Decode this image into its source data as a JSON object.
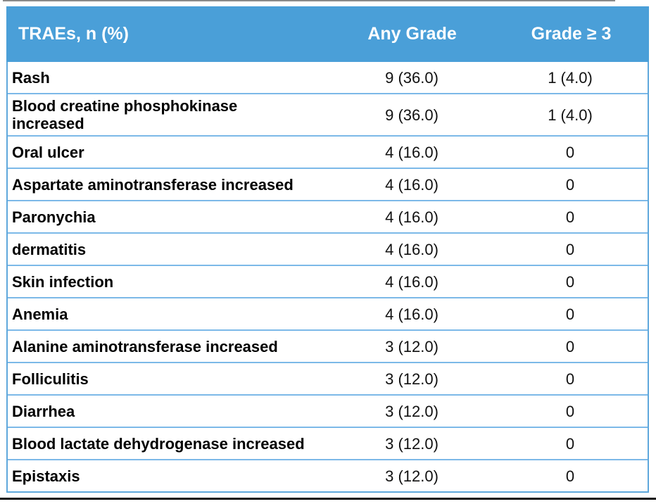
{
  "table": {
    "header": {
      "traes": "TRAEs, n (%)",
      "any_grade": "Any Grade",
      "grade_ge_3": "Grade ≥ 3"
    },
    "rows": [
      {
        "name": "Rash",
        "any_grade": "9 (36.0)",
        "grade_ge_3": "1 (4.0)"
      },
      {
        "name": "Blood creatine phosphokinase increased",
        "any_grade": "9 (36.0)",
        "grade_ge_3": "1 (4.0)"
      },
      {
        "name": "Oral ulcer",
        "any_grade": "4 (16.0)",
        "grade_ge_3": "0"
      },
      {
        "name": "Aspartate aminotransferase increased",
        "any_grade": "4 (16.0)",
        "grade_ge_3": "0"
      },
      {
        "name": "Paronychia",
        "any_grade": "4 (16.0)",
        "grade_ge_3": "0"
      },
      {
        "name": "dermatitis",
        "any_grade": "4 (16.0)",
        "grade_ge_3": "0"
      },
      {
        "name": "Skin infection",
        "any_grade": "4 (16.0)",
        "grade_ge_3": "0"
      },
      {
        "name": "Anemia",
        "any_grade": "4 (16.0)",
        "grade_ge_3": "0"
      },
      {
        "name": "Alanine aminotransferase increased",
        "any_grade": "3 (12.0)",
        "grade_ge_3": "0"
      },
      {
        "name": "Folliculitis",
        "any_grade": "3 (12.0)",
        "grade_ge_3": "0"
      },
      {
        "name": "Diarrhea",
        "any_grade": "3 (12.0)",
        "grade_ge_3": "0"
      },
      {
        "name": "Blood lactate dehydrogenase increased",
        "any_grade": "3 (12.0)",
        "grade_ge_3": "0"
      },
      {
        "name": "Epistaxis",
        "any_grade": "3 (12.0)",
        "grade_ge_3": "0"
      }
    ],
    "colors": {
      "header_bg": "#4a9fd8",
      "header_text": "#ffffff",
      "outer_border": "#5fa8dc",
      "row_separator": "#7cb9e8",
      "body_text": "#111111",
      "bottom_rule": "#101010",
      "top_rule": "#8a8a8a"
    }
  }
}
